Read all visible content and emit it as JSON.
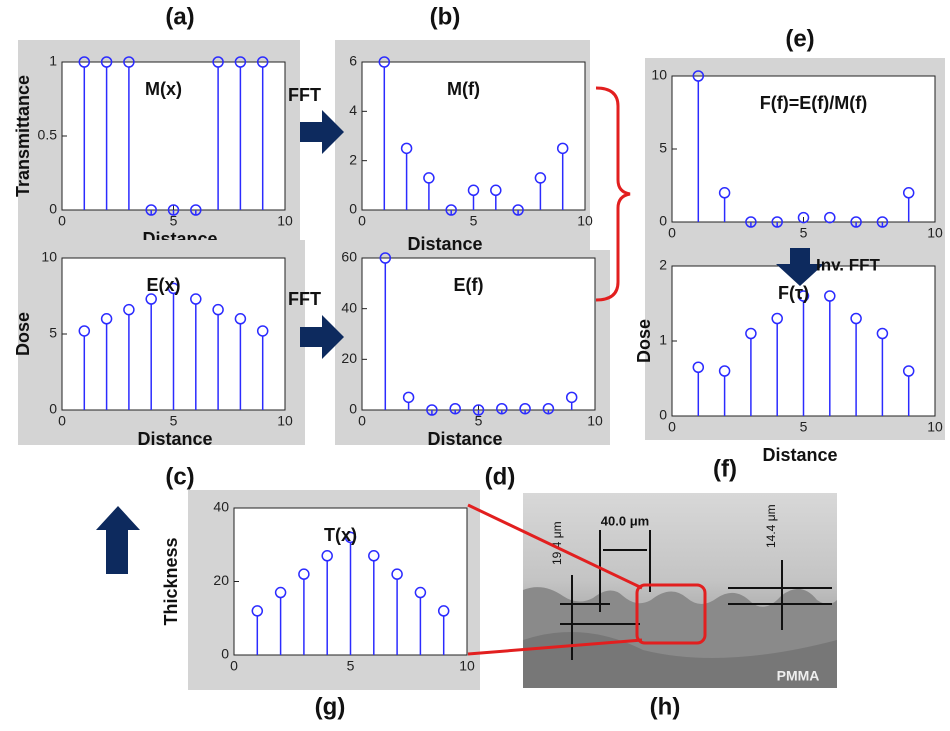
{
  "chart_data": [
    {
      "type": "stem",
      "panel": "(a)",
      "title": "M(x)",
      "ylabel": "Transmittance",
      "xlabel": "Distance",
      "x": [
        1,
        2,
        3,
        4,
        5,
        6,
        7,
        8,
        9
      ],
      "values": [
        1,
        1,
        1,
        0,
        0,
        0,
        1,
        1,
        1
      ],
      "color": "#2b2bff",
      "xlim": [
        0,
        10
      ],
      "ylim": [
        0,
        1
      ],
      "xticks": [
        0,
        5,
        10
      ],
      "yticks": [
        0,
        0.5,
        1
      ]
    },
    {
      "type": "stem",
      "panel": "(b)",
      "title": "M(f)",
      "xlabel": "Distance",
      "x": [
        1,
        2,
        3,
        4,
        5,
        6,
        7,
        8,
        9
      ],
      "values": [
        6,
        2.5,
        1.3,
        0,
        0.8,
        0.8,
        0,
        1.3,
        2.5
      ],
      "color": "#2b2bff",
      "xlim": [
        0,
        10
      ],
      "ylim": [
        0,
        6
      ],
      "xticks": [
        0,
        5,
        10
      ],
      "yticks": [
        0,
        2,
        4,
        6
      ]
    },
    {
      "type": "stem",
      "panel": "(c)",
      "title": "E(x)",
      "ylabel": "Dose",
      "xlabel": "Distance",
      "x": [
        1,
        2,
        3,
        4,
        5,
        6,
        7,
        8,
        9
      ],
      "values": [
        5.2,
        6,
        6.6,
        7.3,
        8,
        7.3,
        6.6,
        6,
        5.2
      ],
      "color": "#2b2bff",
      "xlim": [
        0,
        10
      ],
      "ylim": [
        0,
        10
      ],
      "xticks": [
        0,
        5,
        10
      ],
      "yticks": [
        0,
        5,
        10
      ]
    },
    {
      "type": "stem",
      "panel": "(d)",
      "title": "E(f)",
      "xlabel": "Distance",
      "x": [
        1,
        2,
        3,
        4,
        5,
        6,
        7,
        8,
        9
      ],
      "values": [
        60,
        5,
        0,
        0.5,
        0,
        0.5,
        0.5,
        0.5,
        5
      ],
      "color": "#2b2bff",
      "xlim": [
        0,
        10
      ],
      "ylim": [
        0,
        60
      ],
      "xticks": [
        0,
        5,
        10
      ],
      "yticks": [
        0,
        20,
        40,
        60
      ]
    },
    {
      "type": "stem",
      "panel": "(e)",
      "title": "F(f)=E(f)/M(f)",
      "x": [
        1,
        2,
        3,
        4,
        5,
        6,
        7,
        8,
        9
      ],
      "values": [
        10,
        2,
        0,
        0,
        0.3,
        0.3,
        0,
        0,
        2
      ],
      "color": "#2b2bff",
      "xlim": [
        0,
        10
      ],
      "ylim": [
        0,
        10
      ],
      "xticks": [
        0,
        5,
        10
      ],
      "yticks": [
        0,
        5,
        10
      ]
    },
    {
      "type": "stem",
      "panel": "(f)",
      "title": "F(τ)",
      "ylabel": "Dose",
      "xlabel": "Distance",
      "x": [
        1,
        2,
        3,
        4,
        5,
        6,
        7,
        8,
        9
      ],
      "values": [
        0.65,
        0.6,
        1.1,
        1.3,
        1.6,
        1.6,
        1.3,
        1.1,
        0.6
      ],
      "color": "#2b2bff",
      "xlim": [
        0,
        10
      ],
      "ylim": [
        0,
        2
      ],
      "xticks": [
        0,
        5,
        10
      ],
      "yticks": [
        0,
        1,
        2
      ]
    },
    {
      "type": "stem",
      "panel": "(g)",
      "title": "T(x)",
      "ylabel": "Thickness",
      "x": [
        1,
        2,
        3,
        4,
        5,
        6,
        7,
        8,
        9
      ],
      "values": [
        12,
        17,
        22,
        27,
        32,
        27,
        22,
        17,
        12
      ],
      "color": "#2b2bff",
      "xlim": [
        0,
        10
      ],
      "ylim": [
        0,
        40
      ],
      "xticks": [
        0,
        5,
        10
      ],
      "yticks": [
        0,
        20,
        40
      ]
    }
  ],
  "annotations": {
    "fft_1": "FFT",
    "fft_2": "FFT",
    "inverse_fft": "Inv. FFT"
  },
  "sem_image": {
    "panel": "(h)",
    "period": "40.0 μm",
    "depth_left": "19.4 μm",
    "depth_right": "14.4 μm",
    "material": "PMMA"
  }
}
